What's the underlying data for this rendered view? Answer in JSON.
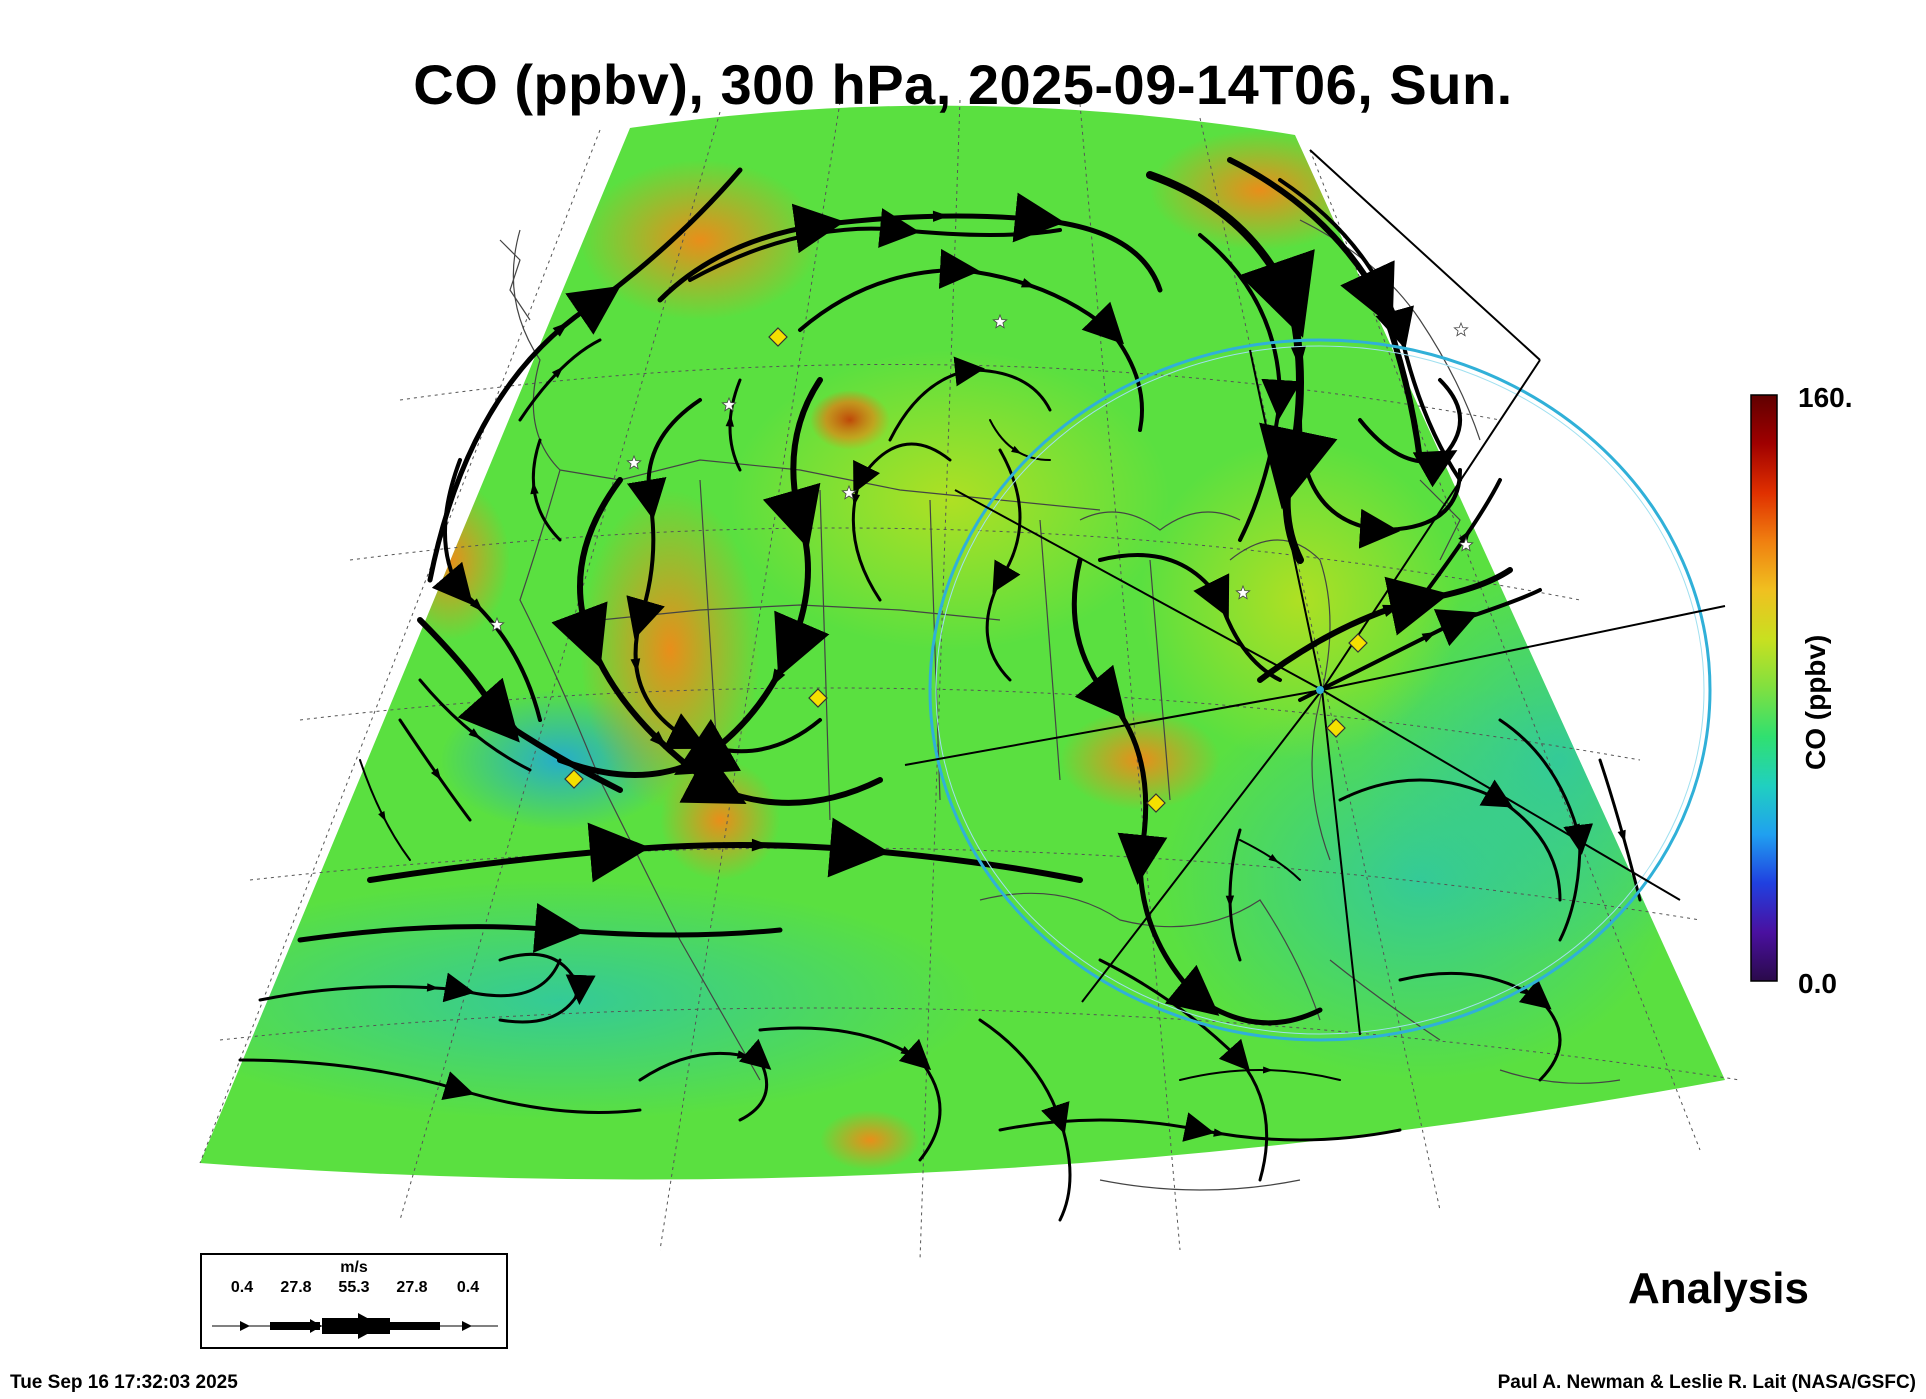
{
  "title": "CO (ppbv), 300 hPa, 2025-09-14T06, Sun.",
  "colorbar": {
    "max_label": "160.",
    "min_label": "0.0",
    "unit_label": "CO (ppbv)",
    "stops": [
      "#2a0a4a",
      "#4a10a0",
      "#2040e0",
      "#20a0f0",
      "#20d0c0",
      "#30e070",
      "#80e040",
      "#c8e020",
      "#f0c020",
      "#f08010",
      "#e03000",
      "#a00000",
      "#600000"
    ]
  },
  "legend": {
    "unit": "m/s",
    "values": [
      "0.4",
      "27.8",
      "55.3",
      "27.8",
      "0.4"
    ]
  },
  "analysis_label": "Analysis",
  "footer": {
    "timestamp": "Tue Sep 16 17:32:03 2025",
    "credit": "Paul A. Newman & Leslie R. Lait (NASA/GSFC)"
  },
  "colors": {
    "field_base": "#58e040",
    "field_low": "#40d890",
    "field_high": "#f0a020",
    "range_ring": "#30b0d8",
    "marker": "#f5e000",
    "streamline": "#000000"
  },
  "icons": [
    "diamond-marker",
    "star-marker",
    "streamline-arrow"
  ]
}
